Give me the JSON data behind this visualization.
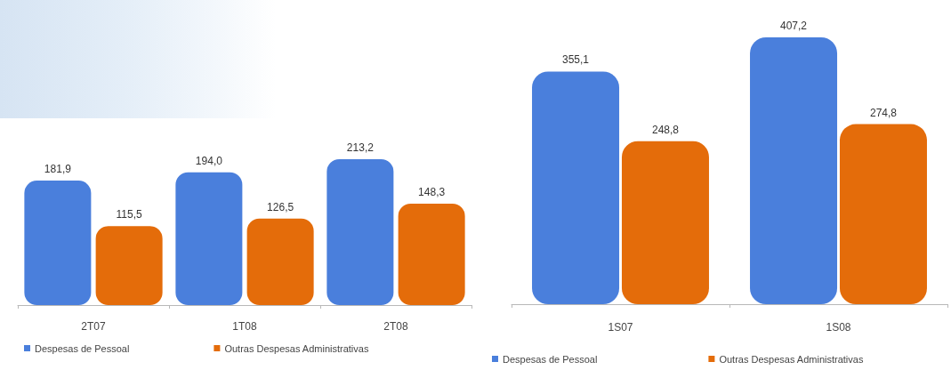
{
  "chart_data": [
    {
      "type": "bar",
      "categories": [
        "2T07",
        "1T08",
        "2T08"
      ],
      "series": [
        {
          "name": "Despesas de Pessoal",
          "color": "#4a7fdc",
          "values": [
            181.9,
            194.0,
            213.2
          ],
          "value_labels": [
            "181,9",
            "194,0",
            "213,2"
          ]
        },
        {
          "name": "Outras Despesas Administrativas",
          "color": "#e46c0a",
          "values": [
            115.5,
            126.5,
            148.3
          ],
          "value_labels": [
            "115,5",
            "126,5",
            "148,3"
          ]
        }
      ],
      "legend": "bottom"
    },
    {
      "type": "bar",
      "categories": [
        "1S07",
        "1S08"
      ],
      "series": [
        {
          "name": "Despesas de Pessoal",
          "color": "#4a7fdc",
          "values": [
            355.1,
            407.2
          ],
          "value_labels": [
            "355,1",
            "407,2"
          ]
        },
        {
          "name": "Outras Despesas Administrativas",
          "color": "#e46c0a",
          "values": [
            248.8,
            274.8
          ],
          "value_labels": [
            "248,8",
            "274,8"
          ]
        }
      ],
      "legend": "bottom"
    }
  ]
}
